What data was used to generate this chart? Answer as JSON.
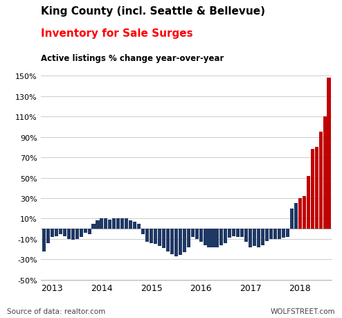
{
  "title1": "King County (incl. Seattle & Bellevue)",
  "title2": "Inventory for Sale Surges",
  "subtitle": "Active listings % change year-over-year",
  "source_left": "Source of data: realtor.com",
  "source_right": "WOLFSTREET.com",
  "ylim": [
    -50,
    150
  ],
  "yticks": [
    -50,
    -30,
    -10,
    10,
    30,
    50,
    70,
    90,
    110,
    130,
    150
  ],
  "ytick_labels": [
    "-50%",
    "-30%",
    "-10%",
    "10%",
    "30%",
    "50%",
    "70%",
    "90%",
    "110%",
    "130%",
    "150%"
  ],
  "xtick_labels": [
    "2013",
    "2014",
    "2015",
    "2016",
    "2017",
    "2018"
  ],
  "background_color": "#ffffff",
  "grid_color": "#cccccc",
  "bar_color_navy": "#1f3864",
  "bar_color_red": "#c00000",
  "navy_count": 62,
  "values": [
    -22,
    -14,
    -8,
    -7,
    -5,
    -7,
    -10,
    -11,
    -10,
    -8,
    -4,
    -5,
    5,
    8,
    10,
    10,
    9,
    10,
    10,
    10,
    10,
    8,
    7,
    5,
    -5,
    -13,
    -14,
    -15,
    -17,
    -19,
    -22,
    -25,
    -27,
    -26,
    -23,
    -18,
    -8,
    -10,
    -13,
    -16,
    -18,
    -18,
    -18,
    -16,
    -14,
    -9,
    -7,
    -8,
    -8,
    -13,
    -18,
    -17,
    -18,
    -16,
    -12,
    -10,
    -10,
    -10,
    -9,
    -8,
    20,
    25,
    30,
    32,
    52,
    78,
    80,
    95,
    110,
    148
  ]
}
